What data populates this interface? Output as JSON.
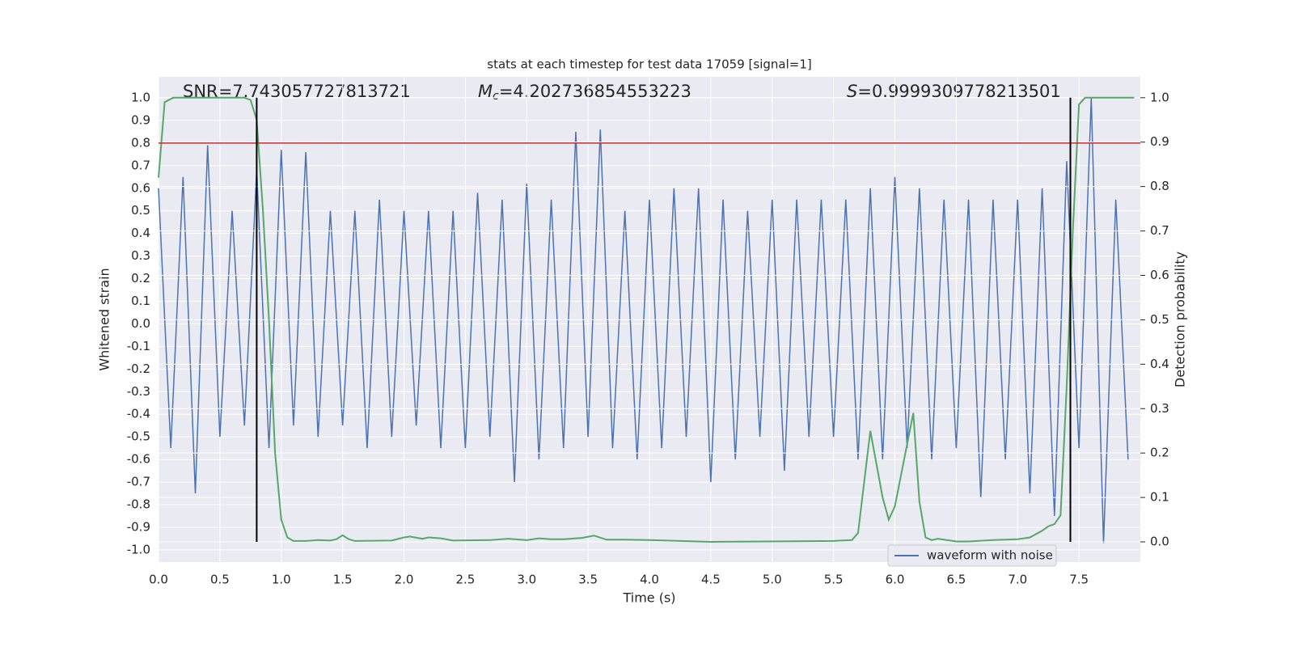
{
  "chart_data": {
    "type": "line",
    "title": "stats at each timestep for test data 17059 [signal=1]",
    "xlabel": "Time (s)",
    "ylabel": "Whitened strain",
    "y2label": "Detection probability",
    "annotations": [
      {
        "text": "SNR=7.743057727813721"
      },
      {
        "symbol": "M",
        "subscript": "c",
        "text": "=4.202736854553223"
      },
      {
        "symbol": "S",
        "text": "=0.9999309778213501"
      }
    ],
    "xlim": [
      0,
      8
    ],
    "xticks": [
      {
        "value": 0,
        "label": "0.0"
      },
      {
        "value": 0.5,
        "label": "0.5"
      },
      {
        "value": 1,
        "label": "1.0"
      },
      {
        "value": 1.5,
        "label": "1.5"
      },
      {
        "value": 2,
        "label": "2.0"
      },
      {
        "value": 2.5,
        "label": "2.5"
      },
      {
        "value": 3,
        "label": "3.0"
      },
      {
        "value": 3.5,
        "label": "3.5"
      },
      {
        "value": 4,
        "label": "4.0"
      },
      {
        "value": 4.5,
        "label": "4.5"
      },
      {
        "value": 5,
        "label": "5.0"
      },
      {
        "value": 5.5,
        "label": "5.5"
      },
      {
        "value": 6,
        "label": "6.0"
      },
      {
        "value": 6.5,
        "label": "6.5"
      },
      {
        "value": 7,
        "label": "7.0"
      },
      {
        "value": 7.5,
        "label": "7.5"
      }
    ],
    "ylim": [
      -1.054,
      1.093
    ],
    "yticks": [
      {
        "value": -1,
        "label": "-1.0"
      },
      {
        "value": -0.9,
        "label": "-0.9"
      },
      {
        "value": -0.8,
        "label": "-0.8"
      },
      {
        "value": -0.7,
        "label": "-0.7"
      },
      {
        "value": -0.6,
        "label": "-0.6"
      },
      {
        "value": -0.5,
        "label": "-0.5"
      },
      {
        "value": -0.4,
        "label": "-0.4"
      },
      {
        "value": -0.3,
        "label": "-0.3"
      },
      {
        "value": -0.2,
        "label": "-0.2"
      },
      {
        "value": -0.1,
        "label": "-0.1"
      },
      {
        "value": 0,
        "label": "0.0"
      },
      {
        "value": 0.1,
        "label": "0.1"
      },
      {
        "value": 0.2,
        "label": "0.2"
      },
      {
        "value": 0.3,
        "label": "0.3"
      },
      {
        "value": 0.4,
        "label": "0.4"
      },
      {
        "value": 0.5,
        "label": "0.5"
      },
      {
        "value": 0.6,
        "label": "0.6"
      },
      {
        "value": 0.7,
        "label": "0.7"
      },
      {
        "value": 0.8,
        "label": "0.8"
      },
      {
        "value": 0.9,
        "label": "0.9"
      },
      {
        "value": 1,
        "label": "1.0"
      }
    ],
    "y2lim": [
      -0.0455,
      1.047
    ],
    "y2ticks": [
      {
        "value": 0,
        "label": "0.0"
      },
      {
        "value": 0.1,
        "label": "0.1"
      },
      {
        "value": 0.2,
        "label": "0.2"
      },
      {
        "value": 0.3,
        "label": "0.3"
      },
      {
        "value": 0.4,
        "label": "0.4"
      },
      {
        "value": 0.5,
        "label": "0.5"
      },
      {
        "value": 0.6,
        "label": "0.6"
      },
      {
        "value": 0.7,
        "label": "0.7"
      },
      {
        "value": 0.8,
        "label": "0.8"
      },
      {
        "value": 0.9,
        "label": "0.9"
      },
      {
        "value": 1,
        "label": "1.0"
      }
    ],
    "grid": true,
    "legend": "lower right",
    "hline": {
      "value": 0.8,
      "color": "#c03030"
    },
    "vlines": {
      "x": [
        0.8,
        7.43
      ],
      "color": "#000000"
    },
    "series": [
      {
        "name": "waveform with noise",
        "color": "#4c72b0",
        "x": [
          0,
          0.1,
          0.2,
          0.3,
          0.4,
          0.5,
          0.6,
          0.7,
          0.8,
          0.9,
          1,
          1.1,
          1.2,
          1.3,
          1.4,
          1.5,
          1.6,
          1.7,
          1.8,
          1.9,
          2,
          2.1,
          2.2,
          2.3,
          2.4,
          2.5,
          2.6,
          2.7,
          2.8,
          2.9,
          3,
          3.1,
          3.2,
          3.3,
          3.4,
          3.5,
          3.6,
          3.7,
          3.8,
          3.9,
          4,
          4.1,
          4.2,
          4.3,
          4.4,
          4.5,
          4.6,
          4.7,
          4.8,
          4.9,
          5,
          5.1,
          5.2,
          5.3,
          5.4,
          5.5,
          5.6,
          5.7,
          5.8,
          5.9,
          6,
          6.1,
          6.2,
          6.3,
          6.4,
          6.5,
          6.6,
          6.7,
          6.8,
          6.9,
          7,
          7.1,
          7.2,
          7.3,
          7.4,
          7.5,
          7.6,
          7.7,
          7.8,
          7.9
        ],
        "values": [
          0.6,
          -0.55,
          0.65,
          -0.75,
          0.79,
          -0.5,
          0.5,
          -0.45,
          0.68,
          -0.55,
          0.77,
          -0.45,
          0.76,
          -0.5,
          0.5,
          -0.45,
          0.5,
          -0.55,
          0.55,
          -0.5,
          0.5,
          -0.45,
          0.5,
          -0.55,
          0.5,
          -0.55,
          0.58,
          -0.5,
          0.55,
          -0.7,
          0.62,
          -0.6,
          0.55,
          -0.55,
          0.85,
          -0.5,
          0.86,
          -0.55,
          0.5,
          -0.6,
          0.55,
          -0.55,
          0.6,
          -0.5,
          0.6,
          -0.7,
          0.55,
          -0.6,
          0.5,
          -0.5,
          0.55,
          -0.65,
          0.55,
          -0.5,
          0.55,
          -0.5,
          0.55,
          -0.6,
          0.6,
          -0.6,
          0.65,
          -0.55,
          0.6,
          -0.6,
          0.55,
          -0.55,
          0.55,
          -0.77,
          0.55,
          -0.6,
          0.55,
          -0.75,
          0.6,
          -0.85,
          0.72,
          -0.55,
          1.0,
          -0.97,
          0.55,
          -0.6
        ]
      },
      {
        "color": "#55a868",
        "axis": "y2",
        "x": [
          0,
          0.05,
          0.12,
          0.7,
          0.75,
          0.8,
          0.85,
          0.9,
          0.95,
          1,
          1.05,
          1.1,
          1.2,
          1.3,
          1.4,
          1.45,
          1.5,
          1.55,
          1.6,
          1.9,
          2,
          2.05,
          2.15,
          2.2,
          2.3,
          2.4,
          2.7,
          2.85,
          3,
          3.1,
          3.2,
          3.3,
          3.45,
          3.55,
          3.65,
          3.8,
          4,
          4.5,
          5.5,
          5.65,
          5.7,
          5.8,
          5.9,
          5.95,
          6,
          6.15,
          6.2,
          6.25,
          6.3,
          6.35,
          6.4,
          6.5,
          6.6,
          6.8,
          7,
          7.1,
          7.2,
          7.25,
          7.3,
          7.35,
          7.4,
          7.45,
          7.5,
          7.55,
          7.95
        ],
        "values": [
          0.82,
          0.99,
          1.0,
          1.0,
          0.995,
          0.95,
          0.75,
          0.5,
          0.2,
          0.05,
          0.01,
          0.002,
          0.002,
          0.004,
          0.003,
          0.006,
          0.015,
          0.006,
          0.002,
          0.003,
          0.01,
          0.012,
          0.007,
          0.01,
          0.008,
          0.003,
          0.004,
          0.007,
          0.004,
          0.008,
          0.006,
          0.006,
          0.009,
          0.014,
          0.005,
          0.005,
          0.004,
          0.0,
          0.002,
          0.004,
          0.02,
          0.25,
          0.1,
          0.05,
          0.08,
          0.29,
          0.09,
          0.01,
          0.004,
          0.007,
          0.005,
          0.001,
          0.001,
          0.004,
          0.006,
          0.01,
          0.025,
          0.035,
          0.04,
          0.06,
          0.35,
          0.7,
          0.985,
          1.0,
          1.0
        ]
      }
    ]
  }
}
